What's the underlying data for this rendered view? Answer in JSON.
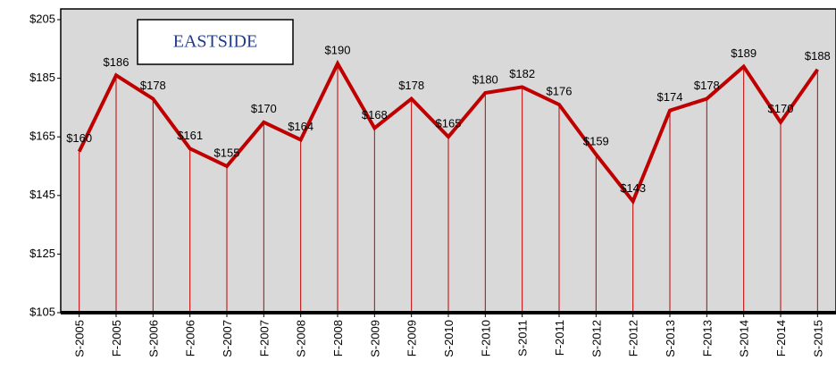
{
  "chart_data": {
    "type": "line",
    "title": "EASTSIDE",
    "categories": [
      "S-2005",
      "F-2005",
      "S-2006",
      "F-2006",
      "S-2007",
      "F-2007",
      "S-2008",
      "F-2008",
      "S-2009",
      "F-2009",
      "S-2010",
      "F-2010",
      "S-2011",
      "F-2011",
      "S-2012",
      "F-2012",
      "S-2013",
      "F-2013",
      "S-2014",
      "F-2014",
      "S-2015"
    ],
    "values": [
      160,
      186,
      178,
      161,
      155,
      170,
      164,
      190,
      168,
      178,
      165,
      180,
      182,
      176,
      159,
      143,
      174,
      178,
      189,
      170,
      188
    ],
    "value_labels": [
      "$160",
      "$186",
      "$178",
      "$161",
      "$155",
      "$170",
      "$164",
      "$190",
      "$168",
      "$178",
      "$165",
      "$180",
      "$182",
      "$176",
      "$159",
      "$143",
      "$174",
      "$178",
      "$189",
      "$170",
      "$188"
    ],
    "color": "#c00000",
    "ylim": [
      105,
      205
    ],
    "yticks": [
      {
        "value": 105,
        "label": "$105"
      },
      {
        "value": 125,
        "label": "$125"
      },
      {
        "value": 145,
        "label": "$145"
      },
      {
        "value": 165,
        "label": "$165"
      },
      {
        "value": 185,
        "label": "$185"
      },
      {
        "value": 205,
        "label": "$205"
      }
    ],
    "grid": false
  }
}
